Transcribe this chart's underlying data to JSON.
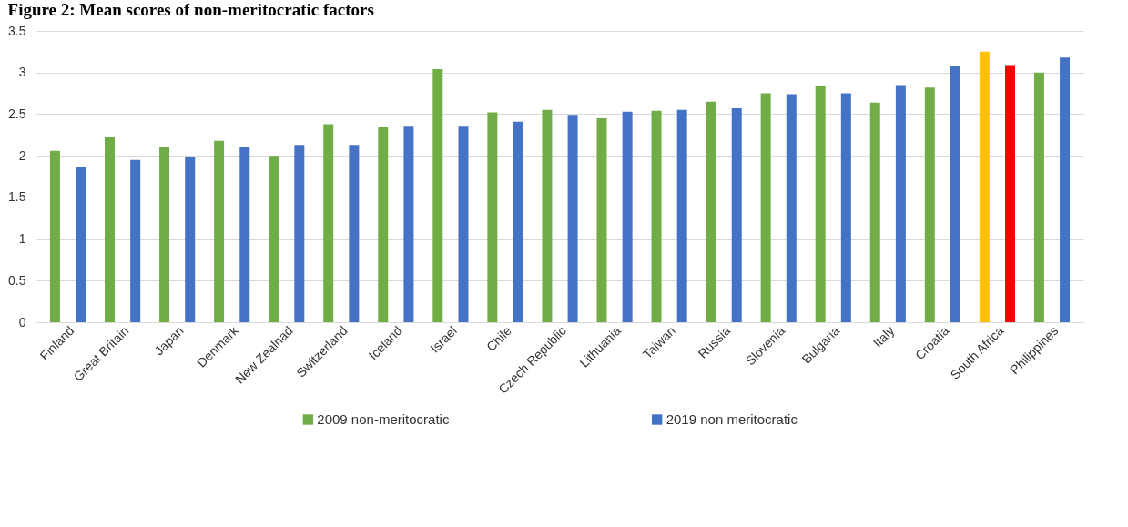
{
  "chart_data": {
    "type": "bar",
    "title": "Figure 2: Mean scores of non-meritocratic factors",
    "categories": [
      "Finland",
      "Great Britain",
      "Japan",
      "Denmark",
      "New Zealnad",
      "Switzerland",
      "Iceland",
      "Israel",
      "Chile",
      "Czech Republic",
      "Lithuania",
      "Taiwan",
      "Russia",
      "Slovenia",
      "Bulgaria",
      "Italy",
      "Croatia",
      "South Africa",
      "Philippines"
    ],
    "series": [
      {
        "name": "2009 non-meritocratic",
        "color": "#70ad47",
        "colors": [
          "#70ad47",
          "#70ad47",
          "#70ad47",
          "#70ad47",
          "#70ad47",
          "#70ad47",
          "#70ad47",
          "#70ad47",
          "#70ad47",
          "#70ad47",
          "#70ad47",
          "#70ad47",
          "#70ad47",
          "#70ad47",
          "#70ad47",
          "#70ad47",
          "#70ad47",
          "#ffc000",
          "#70ad47"
        ],
        "values": [
          2.06,
          2.22,
          2.11,
          2.18,
          2.0,
          2.38,
          2.34,
          3.04,
          2.52,
          2.55,
          2.45,
          2.54,
          2.65,
          2.75,
          2.84,
          2.64,
          2.82,
          3.25,
          3.0
        ]
      },
      {
        "name": "2019 non meritocratic",
        "color": "#4472c4",
        "colors": [
          "#4472c4",
          "#4472c4",
          "#4472c4",
          "#4472c4",
          "#4472c4",
          "#4472c4",
          "#4472c4",
          "#4472c4",
          "#4472c4",
          "#4472c4",
          "#4472c4",
          "#4472c4",
          "#4472c4",
          "#4472c4",
          "#4472c4",
          "#4472c4",
          "#4472c4",
          "#ff0000",
          "#4472c4"
        ],
        "values": [
          1.87,
          1.95,
          1.98,
          2.11,
          2.13,
          2.13,
          2.36,
          2.36,
          2.41,
          2.49,
          2.53,
          2.55,
          2.57,
          2.74,
          2.75,
          2.85,
          3.08,
          3.09,
          3.18
        ]
      }
    ],
    "ylim": [
      0,
      3.5
    ],
    "yticks": [
      0,
      0.5,
      1,
      1.5,
      2,
      2.5,
      3,
      3.5
    ],
    "grid": "y",
    "legend": "bottom"
  }
}
